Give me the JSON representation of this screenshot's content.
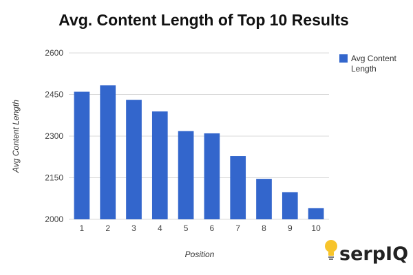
{
  "chart_data": {
    "type": "bar",
    "title": "Avg. Content Length of Top 10 Results",
    "xlabel": "Position",
    "ylabel": "Avg Content Length",
    "categories": [
      "1",
      "2",
      "3",
      "4",
      "5",
      "6",
      "7",
      "8",
      "9",
      "10"
    ],
    "series": [
      {
        "name": "Avg Content Length",
        "color": "#3366cc",
        "values": [
          2460,
          2483,
          2431,
          2389,
          2318,
          2310,
          2228,
          2146,
          2098,
          2040
        ]
      }
    ],
    "ylim": [
      2000,
      2600
    ],
    "yticks": [
      "2000",
      "2150",
      "2300",
      "2450",
      "2600"
    ],
    "grid": true,
    "legend_position": "right"
  },
  "legend": {
    "line1": "Avg Content",
    "line2": "Length"
  },
  "logo": {
    "text": "serpIQ",
    "icon": "lightbulb-icon"
  }
}
